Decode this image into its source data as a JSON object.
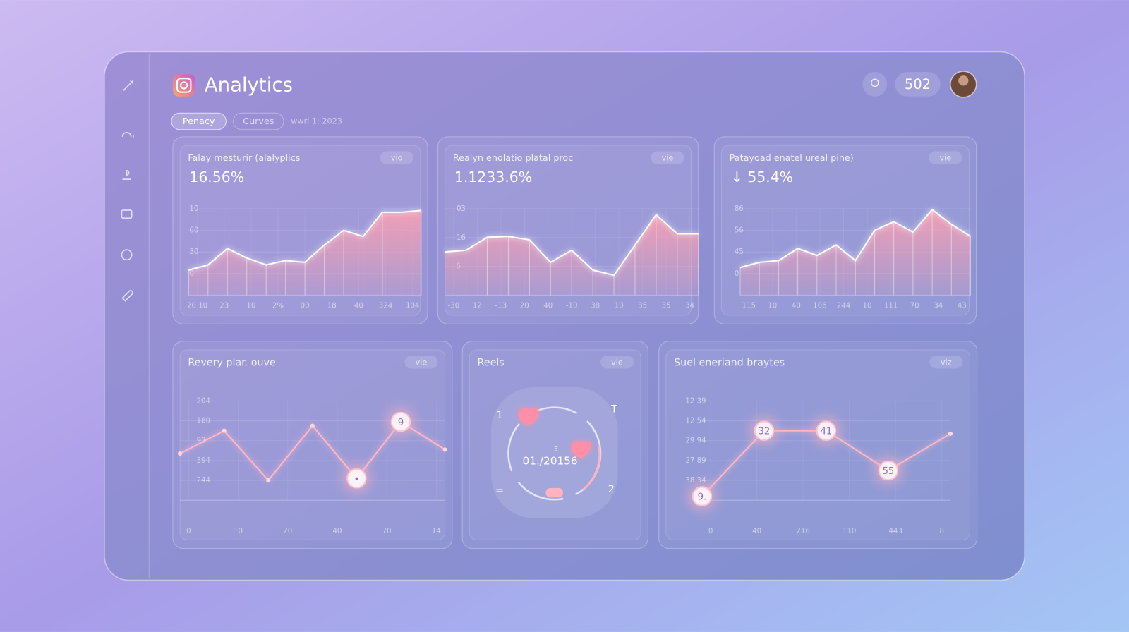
{
  "header": {
    "title": "Analytics",
    "badge": "502"
  },
  "tabs": [
    "Penacy",
    "Curves"
  ],
  "date": "wwri 1: 2023",
  "chart_data": [
    {
      "type": "area",
      "title": "Falay mesturir (alalyplics",
      "button": "vio",
      "metric": "16.56%",
      "color": "#f7a0ae",
      "y_labels": [
        "10",
        "60",
        "30",
        "0"
      ],
      "x_labels": [
        "20 10",
        "23",
        "10",
        "2%",
        "00",
        "18",
        "40",
        "324",
        "104"
      ],
      "ylim": [
        0,
        100
      ],
      "values": [
        29,
        35,
        54,
        43,
        35,
        40,
        38,
        58,
        75,
        68,
        96,
        96,
        98
      ]
    },
    {
      "type": "area",
      "title": "Realyn enolatio platal proc",
      "button": "vie",
      "metric": "1.1233.6%",
      "color": "#f7a0ae",
      "y_labels": [
        "03",
        "16",
        "5"
      ],
      "x_labels": [
        "-30",
        "12",
        "-13",
        "20",
        "40",
        "-10",
        "38",
        "10",
        "35",
        "35",
        "34"
      ],
      "ylim": [
        0,
        100
      ],
      "values": [
        50,
        52,
        67,
        68,
        64,
        38,
        52,
        29,
        23,
        58,
        93,
        71,
        71
      ]
    },
    {
      "type": "area",
      "title": "Patayoad enatel ureal pine)",
      "button": "vie",
      "metric": "↓ 55.4%",
      "color": "#f7a0ae",
      "y_labels": [
        "86",
        "56",
        "45",
        "0"
      ],
      "x_labels": [
        "115",
        "10",
        "40",
        "106",
        "244",
        "10",
        "111",
        "70",
        "34",
        "43"
      ],
      "ylim": [
        0,
        100
      ],
      "values": [
        32,
        38,
        40,
        54,
        46,
        58,
        40,
        75,
        85,
        73,
        99,
        82,
        68
      ]
    },
    {
      "type": "line",
      "title": "Revery plar. ouve",
      "button": "vie",
      "color": "#ffb8c6",
      "y_labels": [
        "204",
        "180",
        "92",
        "394",
        "244"
      ],
      "x_labels": [
        "0",
        "10",
        "20",
        "40",
        "70",
        "14"
      ],
      "ylim": [
        0,
        100
      ],
      "values": [
        47,
        70,
        20,
        75,
        22,
        79,
        51
      ],
      "annotations": [
        {
          "point": 5,
          "text": "9"
        },
        {
          "point": 4,
          "text": "•"
        }
      ]
    },
    {
      "type": "ring",
      "title": "Reels",
      "button": "vie",
      "center_text": "01./20156",
      "small_text": "3",
      "labels": [
        "1",
        "T",
        "=",
        "2"
      ]
    },
    {
      "type": "line",
      "title": "Suel eneriand braytes",
      "button": "viz",
      "color": "#ffb8c6",
      "y_labels": [
        "12 39",
        "12 54",
        "29 94",
        "27 89",
        "38 34"
      ],
      "x_labels": [
        "0",
        "40",
        "216",
        "110",
        "443",
        "8"
      ],
      "ylim": [
        0,
        100
      ],
      "values": [
        4,
        70,
        70,
        30,
        67
      ],
      "annotations": [
        {
          "point": 0,
          "text": "9."
        },
        {
          "point": 1,
          "text": "32"
        },
        {
          "point": 2,
          "text": "41"
        },
        {
          "point": 3,
          "text": "55"
        }
      ]
    }
  ]
}
